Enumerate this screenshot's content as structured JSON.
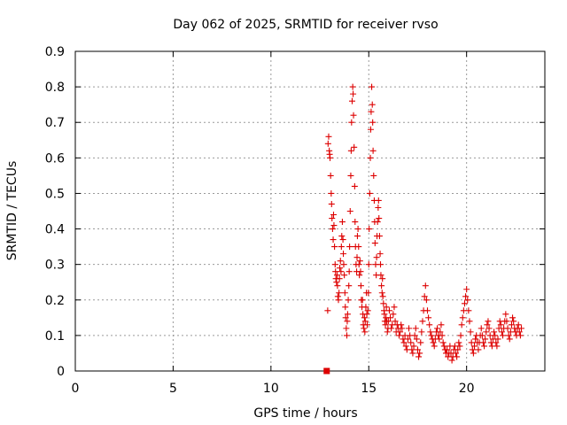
{
  "chart_data": {
    "type": "scatter",
    "title": "Day 062 of 2025, SRMTID for receiver rvso",
    "xlabel": "GPS time / hours",
    "ylabel": "SRMTID / TECUs",
    "xlim": [
      0,
      24
    ],
    "ylim": [
      0,
      0.9
    ],
    "xticks": [
      0,
      5,
      10,
      15,
      20
    ],
    "yticks": [
      0,
      0.1,
      0.2,
      0.3,
      0.4,
      0.5,
      0.6,
      0.7,
      0.8,
      0.9
    ],
    "grid": true,
    "marker_color": "#dd0000",
    "marker": "plus",
    "zero_marker": {
      "x": 12.85,
      "y": 0,
      "shape": "square"
    },
    "series": [
      {
        "name": "SRMTID",
        "points": [
          [
            12.9,
            0.17
          ],
          [
            12.92,
            0.64
          ],
          [
            12.95,
            0.66
          ],
          [
            12.98,
            0.62
          ],
          [
            13.0,
            0.61
          ],
          [
            13.02,
            0.6
          ],
          [
            13.05,
            0.55
          ],
          [
            13.08,
            0.5
          ],
          [
            13.1,
            0.47
          ],
          [
            13.12,
            0.43
          ],
          [
            13.15,
            0.4
          ],
          [
            13.18,
            0.37
          ],
          [
            13.2,
            0.44
          ],
          [
            13.22,
            0.41
          ],
          [
            13.25,
            0.35
          ],
          [
            13.28,
            0.3
          ],
          [
            13.3,
            0.28
          ],
          [
            13.32,
            0.26
          ],
          [
            13.35,
            0.25
          ],
          [
            13.38,
            0.27
          ],
          [
            13.4,
            0.24
          ],
          [
            13.42,
            0.21
          ],
          [
            13.45,
            0.2
          ],
          [
            13.48,
            0.22
          ],
          [
            13.5,
            0.26
          ],
          [
            13.52,
            0.29
          ],
          [
            13.55,
            0.31
          ],
          [
            13.58,
            0.28
          ],
          [
            13.6,
            0.35
          ],
          [
            13.62,
            0.38
          ],
          [
            13.65,
            0.42
          ],
          [
            13.68,
            0.37
          ],
          [
            13.7,
            0.33
          ],
          [
            13.72,
            0.3
          ],
          [
            13.75,
            0.27
          ],
          [
            13.78,
            0.22
          ],
          [
            13.8,
            0.18
          ],
          [
            13.82,
            0.15
          ],
          [
            13.85,
            0.12
          ],
          [
            13.88,
            0.1
          ],
          [
            13.9,
            0.14
          ],
          [
            13.92,
            0.16
          ],
          [
            13.95,
            0.2
          ],
          [
            13.98,
            0.24
          ],
          [
            14.0,
            0.28
          ],
          [
            14.02,
            0.35
          ],
          [
            14.05,
            0.45
          ],
          [
            14.08,
            0.55
          ],
          [
            14.1,
            0.62
          ],
          [
            14.12,
            0.7
          ],
          [
            14.15,
            0.76
          ],
          [
            14.18,
            0.8
          ],
          [
            14.2,
            0.78
          ],
          [
            14.22,
            0.72
          ],
          [
            14.25,
            0.63
          ],
          [
            14.28,
            0.52
          ],
          [
            14.3,
            0.42
          ],
          [
            14.32,
            0.35
          ],
          [
            14.35,
            0.3
          ],
          [
            14.38,
            0.28
          ],
          [
            14.4,
            0.32
          ],
          [
            14.42,
            0.38
          ],
          [
            14.45,
            0.4
          ],
          [
            14.48,
            0.35
          ],
          [
            14.5,
            0.3
          ],
          [
            14.52,
            0.27
          ],
          [
            14.55,
            0.31
          ],
          [
            14.58,
            0.28
          ],
          [
            14.6,
            0.24
          ],
          [
            14.62,
            0.2
          ],
          [
            14.65,
            0.18
          ],
          [
            14.68,
            0.2
          ],
          [
            14.7,
            0.16
          ],
          [
            14.72,
            0.13
          ],
          [
            14.75,
            0.12
          ],
          [
            14.78,
            0.15
          ],
          [
            14.8,
            0.11
          ],
          [
            14.82,
            0.14
          ],
          [
            14.85,
            0.18
          ],
          [
            14.88,
            0.22
          ],
          [
            14.9,
            0.16
          ],
          [
            14.92,
            0.13
          ],
          [
            14.95,
            0.17
          ],
          [
            14.98,
            0.22
          ],
          [
            15.0,
            0.3
          ],
          [
            15.02,
            0.4
          ],
          [
            15.05,
            0.5
          ],
          [
            15.08,
            0.6
          ],
          [
            15.1,
            0.68
          ],
          [
            15.12,
            0.73
          ],
          [
            15.15,
            0.8
          ],
          [
            15.18,
            0.75
          ],
          [
            15.2,
            0.7
          ],
          [
            15.22,
            0.62
          ],
          [
            15.25,
            0.55
          ],
          [
            15.28,
            0.48
          ],
          [
            15.3,
            0.42
          ],
          [
            15.32,
            0.36
          ],
          [
            15.35,
            0.3
          ],
          [
            15.38,
            0.27
          ],
          [
            15.4,
            0.32
          ],
          [
            15.42,
            0.38
          ],
          [
            15.45,
            0.42
          ],
          [
            15.48,
            0.46
          ],
          [
            15.5,
            0.48
          ],
          [
            15.52,
            0.43
          ],
          [
            15.55,
            0.38
          ],
          [
            15.58,
            0.33
          ],
          [
            15.6,
            0.3
          ],
          [
            15.62,
            0.27
          ],
          [
            15.65,
            0.24
          ],
          [
            15.68,
            0.22
          ],
          [
            15.7,
            0.26
          ],
          [
            15.72,
            0.21
          ],
          [
            15.75,
            0.19
          ],
          [
            15.78,
            0.17
          ],
          [
            15.8,
            0.16
          ],
          [
            15.82,
            0.14
          ],
          [
            15.85,
            0.13
          ],
          [
            15.88,
            0.15
          ],
          [
            15.9,
            0.18
          ],
          [
            15.92,
            0.14
          ],
          [
            15.95,
            0.11
          ],
          [
            15.98,
            0.12
          ],
          [
            16.0,
            0.14
          ],
          [
            16.05,
            0.17
          ],
          [
            16.1,
            0.15
          ],
          [
            16.15,
            0.12
          ],
          [
            16.2,
            0.13
          ],
          [
            16.25,
            0.16
          ],
          [
            16.3,
            0.18
          ],
          [
            16.35,
            0.14
          ],
          [
            16.4,
            0.11
          ],
          [
            16.45,
            0.13
          ],
          [
            16.5,
            0.12
          ],
          [
            16.55,
            0.1
          ],
          [
            16.6,
            0.11
          ],
          [
            16.65,
            0.13
          ],
          [
            16.7,
            0.12
          ],
          [
            16.75,
            0.09
          ],
          [
            16.8,
            0.08
          ],
          [
            16.85,
            0.1
          ],
          [
            16.9,
            0.07
          ],
          [
            16.95,
            0.06
          ],
          [
            17.0,
            0.09
          ],
          [
            17.05,
            0.12
          ],
          [
            17.1,
            0.1
          ],
          [
            17.15,
            0.08
          ],
          [
            17.2,
            0.06
          ],
          [
            17.25,
            0.05
          ],
          [
            17.3,
            0.07
          ],
          [
            17.35,
            0.1
          ],
          [
            17.4,
            0.12
          ],
          [
            17.45,
            0.09
          ],
          [
            17.5,
            0.06
          ],
          [
            17.55,
            0.04
          ],
          [
            17.6,
            0.05
          ],
          [
            17.65,
            0.08
          ],
          [
            17.7,
            0.11
          ],
          [
            17.75,
            0.14
          ],
          [
            17.8,
            0.17
          ],
          [
            17.85,
            0.21
          ],
          [
            17.9,
            0.24
          ],
          [
            17.95,
            0.2
          ],
          [
            18.0,
            0.17
          ],
          [
            18.05,
            0.15
          ],
          [
            18.1,
            0.13
          ],
          [
            18.15,
            0.11
          ],
          [
            18.2,
            0.1
          ],
          [
            18.25,
            0.09
          ],
          [
            18.3,
            0.08
          ],
          [
            18.35,
            0.07
          ],
          [
            18.4,
            0.09
          ],
          [
            18.45,
            0.11
          ],
          [
            18.5,
            0.12
          ],
          [
            18.55,
            0.1
          ],
          [
            18.6,
            0.09
          ],
          [
            18.65,
            0.11
          ],
          [
            18.7,
            0.13
          ],
          [
            18.75,
            0.1
          ],
          [
            18.8,
            0.08
          ],
          [
            18.85,
            0.07
          ],
          [
            18.9,
            0.06
          ],
          [
            18.95,
            0.05
          ],
          [
            19.0,
            0.06
          ],
          [
            19.05,
            0.04
          ],
          [
            19.1,
            0.05
          ],
          [
            19.15,
            0.07
          ],
          [
            19.2,
            0.05
          ],
          [
            19.25,
            0.03
          ],
          [
            19.3,
            0.04
          ],
          [
            19.35,
            0.06
          ],
          [
            19.4,
            0.07
          ],
          [
            19.45,
            0.05
          ],
          [
            19.5,
            0.04
          ],
          [
            19.55,
            0.06
          ],
          [
            19.6,
            0.08
          ],
          [
            19.65,
            0.07
          ],
          [
            19.7,
            0.1
          ],
          [
            19.75,
            0.13
          ],
          [
            19.8,
            0.15
          ],
          [
            19.85,
            0.17
          ],
          [
            19.9,
            0.19
          ],
          [
            19.95,
            0.21
          ],
          [
            20.0,
            0.23
          ],
          [
            20.05,
            0.2
          ],
          [
            20.1,
            0.17
          ],
          [
            20.15,
            0.14
          ],
          [
            20.2,
            0.11
          ],
          [
            20.25,
            0.08
          ],
          [
            20.3,
            0.06
          ],
          [
            20.35,
            0.05
          ],
          [
            20.4,
            0.07
          ],
          [
            20.45,
            0.09
          ],
          [
            20.5,
            0.1
          ],
          [
            20.55,
            0.08
          ],
          [
            20.6,
            0.06
          ],
          [
            20.65,
            0.08
          ],
          [
            20.7,
            0.1
          ],
          [
            20.75,
            0.12
          ],
          [
            20.8,
            0.1
          ],
          [
            20.85,
            0.08
          ],
          [
            20.9,
            0.07
          ],
          [
            20.95,
            0.09
          ],
          [
            21.0,
            0.11
          ],
          [
            21.05,
            0.13
          ],
          [
            21.1,
            0.14
          ],
          [
            21.15,
            0.12
          ],
          [
            21.2,
            0.1
          ],
          [
            21.25,
            0.08
          ],
          [
            21.3,
            0.07
          ],
          [
            21.35,
            0.09
          ],
          [
            21.4,
            0.11
          ],
          [
            21.45,
            0.1
          ],
          [
            21.5,
            0.08
          ],
          [
            21.55,
            0.07
          ],
          [
            21.6,
            0.09
          ],
          [
            21.65,
            0.12
          ],
          [
            21.7,
            0.14
          ],
          [
            21.75,
            0.13
          ],
          [
            21.8,
            0.11
          ],
          [
            21.85,
            0.1
          ],
          [
            21.9,
            0.12
          ],
          [
            21.95,
            0.14
          ],
          [
            22.0,
            0.16
          ],
          [
            22.05,
            0.14
          ],
          [
            22.1,
            0.12
          ],
          [
            22.15,
            0.1
          ],
          [
            22.2,
            0.09
          ],
          [
            22.25,
            0.11
          ],
          [
            22.3,
            0.13
          ],
          [
            22.35,
            0.15
          ],
          [
            22.4,
            0.14
          ],
          [
            22.45,
            0.12
          ],
          [
            22.5,
            0.11
          ],
          [
            22.55,
            0.1
          ],
          [
            22.6,
            0.12
          ],
          [
            22.65,
            0.13
          ],
          [
            22.7,
            0.11
          ],
          [
            22.75,
            0.1
          ],
          [
            22.8,
            0.12
          ]
        ]
      }
    ]
  }
}
